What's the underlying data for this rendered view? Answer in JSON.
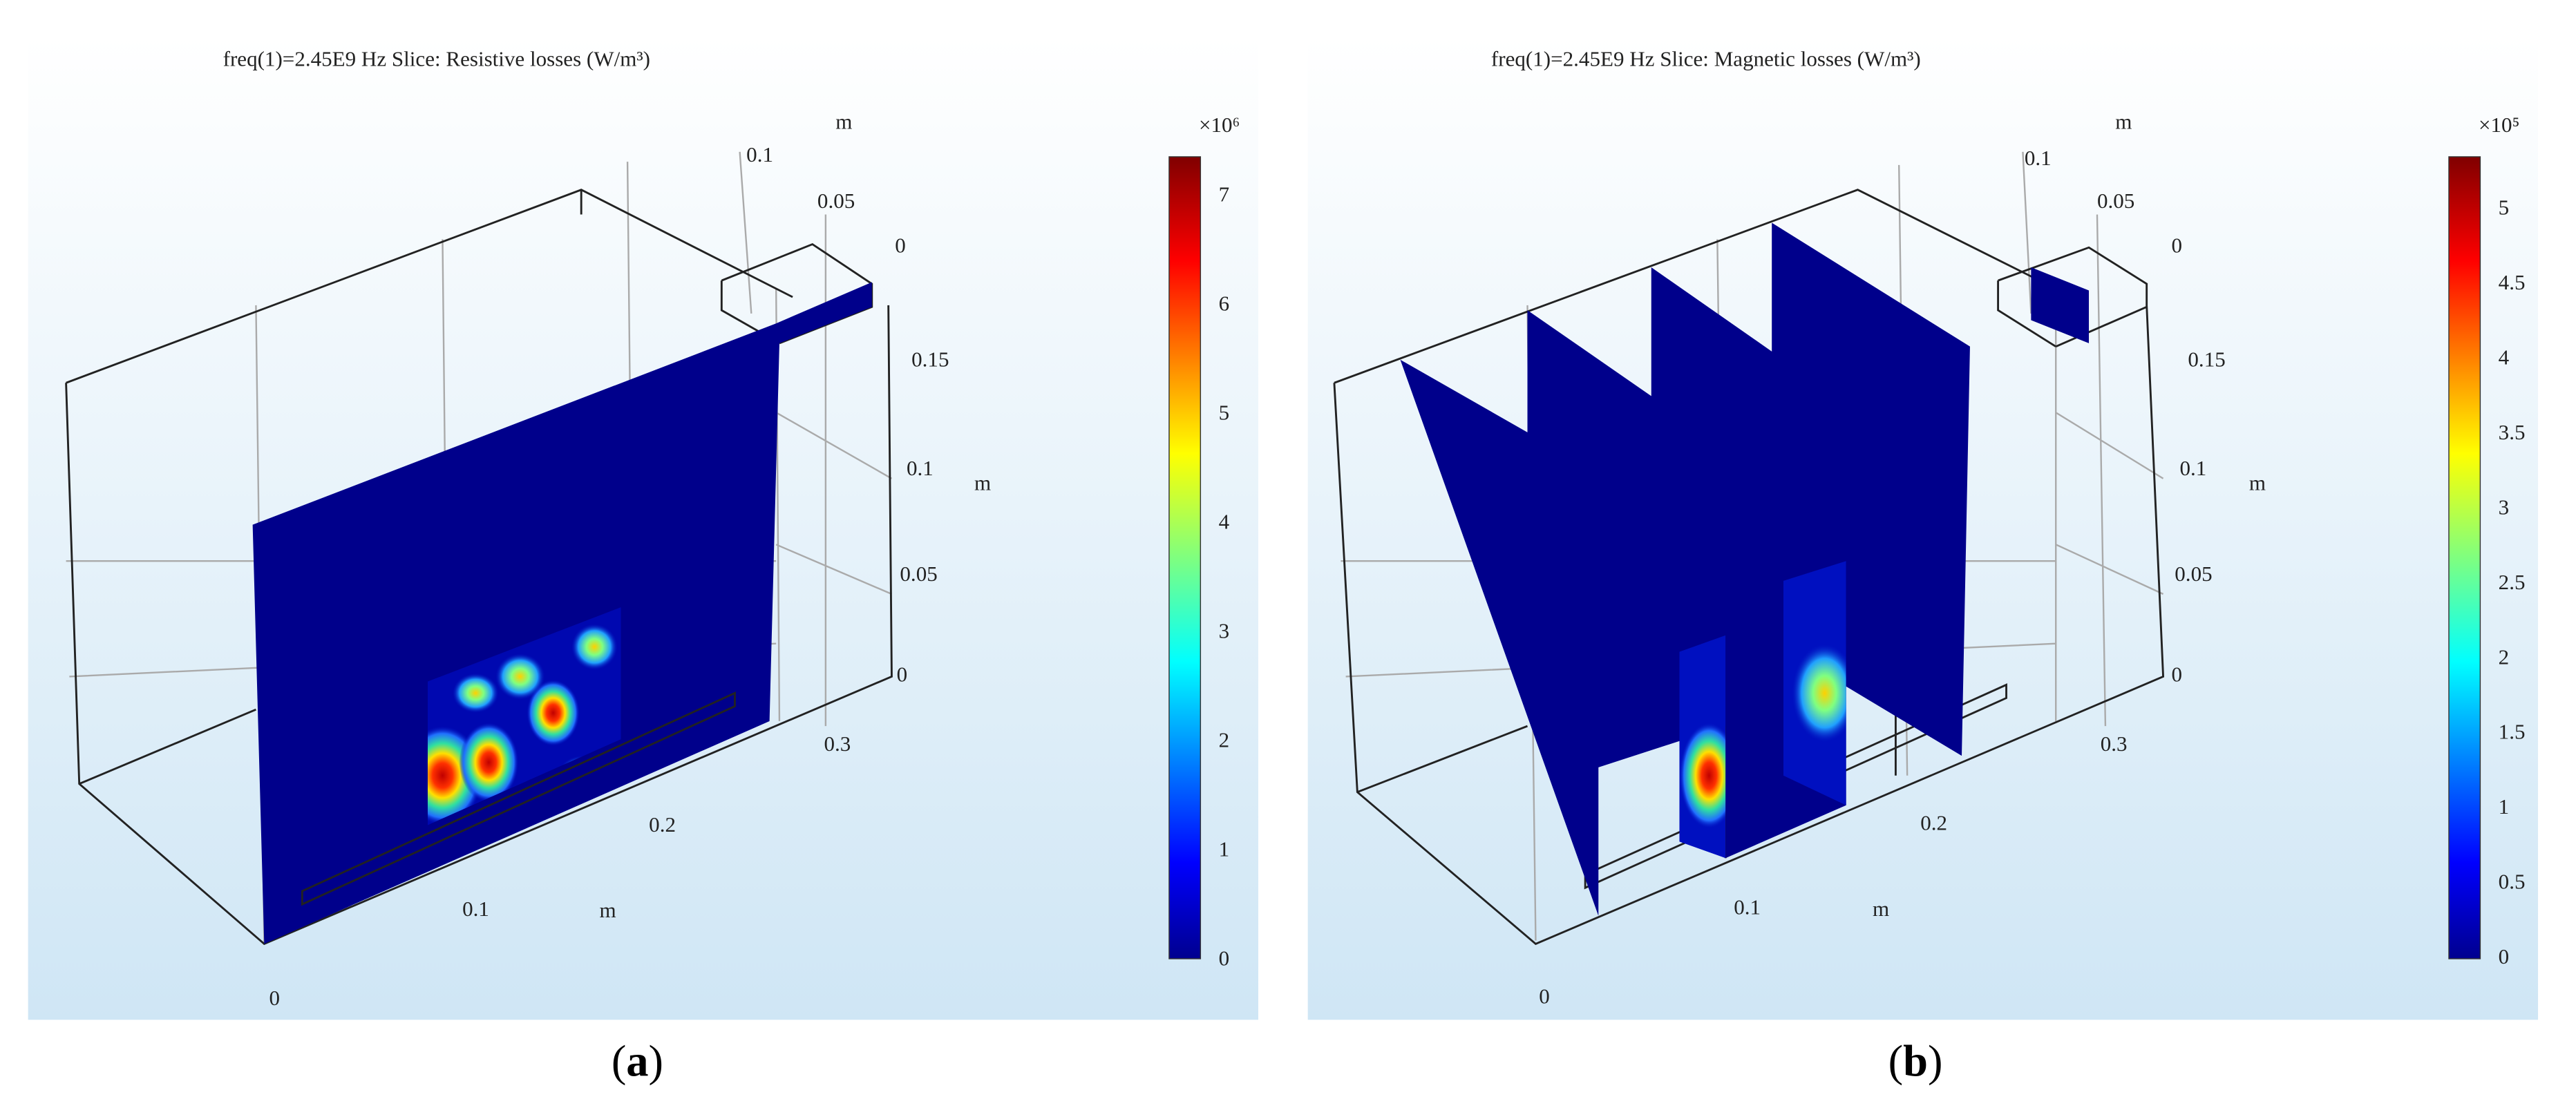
{
  "panels": [
    {
      "title": "freq(1)=2.45E9 Hz   Slice: Resistive losses (W/m³)",
      "multiplier": "×10⁶",
      "colorbar_ticks": [
        "0",
        "1",
        "2",
        "3",
        "4",
        "5",
        "6",
        "7"
      ],
      "y_axis": {
        "label": "m",
        "ticks": [
          "0.1",
          "0.05",
          "0"
        ]
      },
      "z_axis": {
        "label": "m",
        "ticks": [
          "0.15",
          "0.1",
          "0.05",
          "0"
        ]
      },
      "x_axis": {
        "label": "m",
        "ticks": [
          "0",
          "0.1",
          "0.2",
          "0.3"
        ]
      },
      "caption": {
        "open": "(",
        "letter": "a",
        "close": ")"
      }
    },
    {
      "title": "freq(1)=2.45E9 Hz   Slice: Magnetic losses (W/m³)",
      "multiplier": "×10⁵",
      "colorbar_ticks": [
        "0",
        "0.5",
        "1",
        "1.5",
        "2",
        "2.5",
        "3",
        "3.5",
        "4",
        "4.5",
        "5"
      ],
      "y_axis": {
        "label": "m",
        "ticks": [
          "0.1",
          "0.05",
          "0"
        ]
      },
      "z_axis": {
        "label": "m",
        "ticks": [
          "0.15",
          "0.1",
          "0.05",
          "0"
        ]
      },
      "x_axis": {
        "label": "m",
        "ticks": [
          "0",
          "0.1",
          "0.2",
          "0.3"
        ]
      },
      "caption": {
        "open": "(",
        "letter": "b",
        "close": ")"
      }
    }
  ]
}
